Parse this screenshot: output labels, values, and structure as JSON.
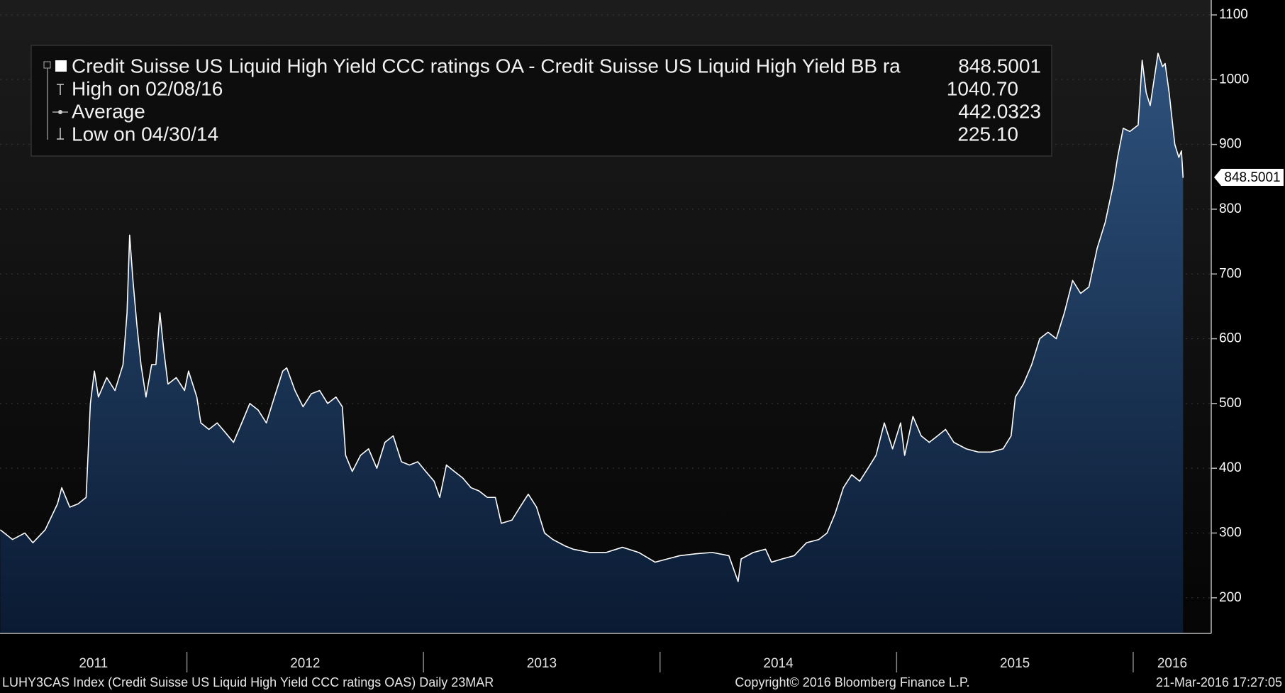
{
  "chart_data": {
    "type": "area",
    "series": [
      {
        "name": "Credit Suisse US Liquid High Yield CCC ratings OA - Credit Suisse US Liquid High Yield BB ra",
        "color": "#ffffff",
        "values": [
          305,
          290,
          300,
          285,
          305,
          345,
          370,
          340,
          345,
          355,
          500,
          550,
          510,
          540,
          520,
          560,
          640,
          760,
          690,
          620,
          560,
          510,
          560,
          560,
          640,
          580,
          530,
          540,
          520,
          550,
          510,
          470,
          460,
          470,
          455,
          440,
          470,
          500,
          490,
          470,
          510,
          550,
          555,
          520,
          495,
          515,
          520,
          500,
          510,
          495,
          420,
          395,
          420,
          430,
          400,
          440,
          450,
          410,
          405,
          410,
          395,
          380,
          355,
          405,
          395,
          385,
          370,
          365,
          355,
          355,
          315,
          320,
          340,
          360,
          340,
          300,
          290,
          280,
          275,
          270,
          270,
          278,
          270,
          255,
          260,
          265,
          268,
          270,
          265,
          225.1,
          260,
          270,
          275,
          255,
          260,
          265,
          285,
          290,
          300,
          330,
          370,
          390,
          380,
          400,
          420,
          470,
          430,
          470,
          420,
          480,
          450,
          440,
          450,
          460,
          440,
          430,
          425,
          425,
          430,
          450,
          510,
          530,
          560,
          600,
          610,
          600,
          640,
          690,
          670,
          680,
          740,
          780,
          840,
          880,
          925,
          920,
          930,
          1030,
          980,
          960,
          1040.7,
          1020,
          1025,
          980,
          900,
          880,
          890,
          848.5001
        ]
      }
    ],
    "x": [
      2011.211,
      2011.263,
      2011.315,
      2011.349,
      2011.401,
      2011.453,
      2011.471,
      2011.505,
      2011.54,
      2011.574,
      2011.592,
      2011.609,
      2011.626,
      2011.661,
      2011.696,
      2011.73,
      2011.747,
      2011.758,
      2011.772,
      2011.789,
      2011.806,
      2011.827,
      2011.851,
      2011.869,
      2011.886,
      2011.903,
      2011.92,
      2011.955,
      2011.99,
      2012.007,
      2012.042,
      2012.059,
      2012.093,
      2012.128,
      2012.163,
      2012.197,
      2012.232,
      2012.266,
      2012.301,
      2012.336,
      2012.37,
      2012.405,
      2012.422,
      2012.457,
      2012.491,
      2012.526,
      2012.561,
      2012.595,
      2012.63,
      2012.657,
      2012.671,
      2012.699,
      2012.734,
      2012.768,
      2012.803,
      2012.837,
      2012.872,
      2012.907,
      2012.941,
      2012.976,
      2013.01,
      2013.045,
      2013.069,
      2013.097,
      2013.131,
      2013.166,
      2013.201,
      2013.235,
      2013.27,
      2013.304,
      2013.329,
      2013.374,
      2013.408,
      2013.443,
      2013.478,
      2013.512,
      2013.547,
      2013.599,
      2013.633,
      2013.703,
      2013.772,
      2013.841,
      2013.91,
      2013.979,
      2014.031,
      2014.083,
      2014.152,
      2014.221,
      2014.291,
      2014.33,
      2014.343,
      2014.394,
      2014.446,
      2014.471,
      2014.516,
      2014.567,
      2014.619,
      2014.671,
      2014.706,
      2014.74,
      2014.775,
      2014.81,
      2014.844,
      2014.879,
      2014.913,
      2014.948,
      2014.983,
      2015.017,
      2015.034,
      2015.069,
      2015.104,
      2015.138,
      2015.173,
      2015.207,
      2015.242,
      2015.294,
      2015.346,
      2015.398,
      2015.45,
      2015.484,
      2015.502,
      2015.536,
      2015.571,
      2015.605,
      2015.64,
      2015.675,
      2015.709,
      2015.744,
      2015.778,
      2015.813,
      2015.848,
      2015.882,
      2015.917,
      2015.934,
      2015.958,
      2015.986,
      2016.021,
      2016.038,
      2016.055,
      2016.072,
      2016.105,
      2016.124,
      2016.135,
      2016.152,
      2016.176,
      2016.193,
      2016.204,
      2016.211
    ],
    "xlim": [
      2011.21,
      2016.33
    ],
    "xticks": [
      2011,
      2012,
      2013,
      2014,
      2015,
      2016
    ],
    "ylim": [
      145,
      1123
    ],
    "yticks": [
      200,
      300,
      400,
      500,
      600,
      700,
      800,
      900,
      1000,
      1100
    ],
    "grid": true,
    "last_label": "848.5001",
    "stats": [
      {
        "label": "High on 02/08/16",
        "value": "1040.70"
      },
      {
        "label": "Average",
        "value": "442.0323"
      },
      {
        "label": "Low on 04/30/14",
        "value": "225.10"
      }
    ]
  },
  "footer": {
    "left": "LUHY3CAS Index (Credit Suisse US Liquid High Yield CCC ratings OAS)  Daily 23MAR",
    "center": "Copyright© 2016 Bloomberg Finance L.P.",
    "right": "21-Mar-2016 17:27:05"
  }
}
